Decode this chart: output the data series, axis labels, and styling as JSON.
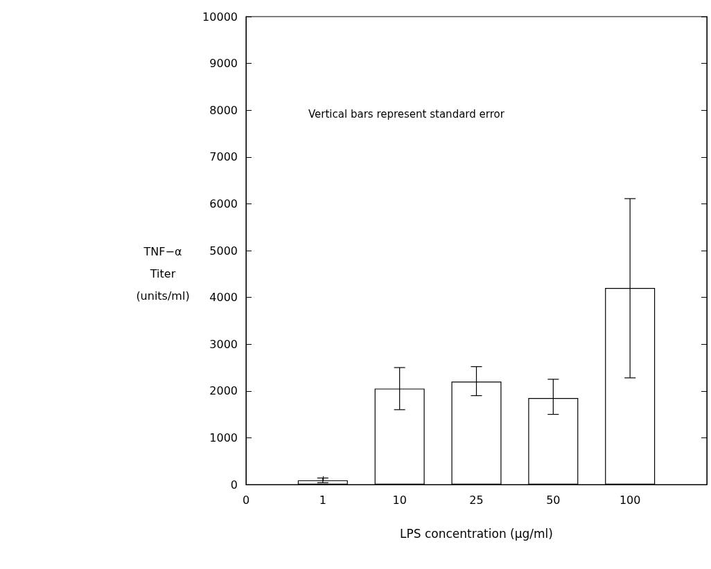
{
  "chart_data": {
    "type": "bar",
    "xlabel": "LPS concentration (μg/ml)",
    "ylabel": "TNF−α\nTiter\n(units/ml)",
    "annotations": [
      "Vertical bars represent standard error"
    ],
    "categories": [
      "0",
      "1",
      "10",
      "25",
      "50",
      "100",
      null
    ],
    "values": [
      null,
      90,
      2050,
      2200,
      1850,
      4200,
      null
    ],
    "errors": [
      null,
      50,
      450,
      [
        1900,
        2520
      ],
      [
        1500,
        2250
      ],
      [
        2280,
        6110
      ],
      null
    ],
    "color": "#ffffff",
    "ylim": [
      0,
      10000
    ],
    "yticks": [
      0,
      1000,
      2000,
      3000,
      4000,
      5000,
      6000,
      7000,
      8000,
      9000,
      10000
    ],
    "grid": false
  }
}
